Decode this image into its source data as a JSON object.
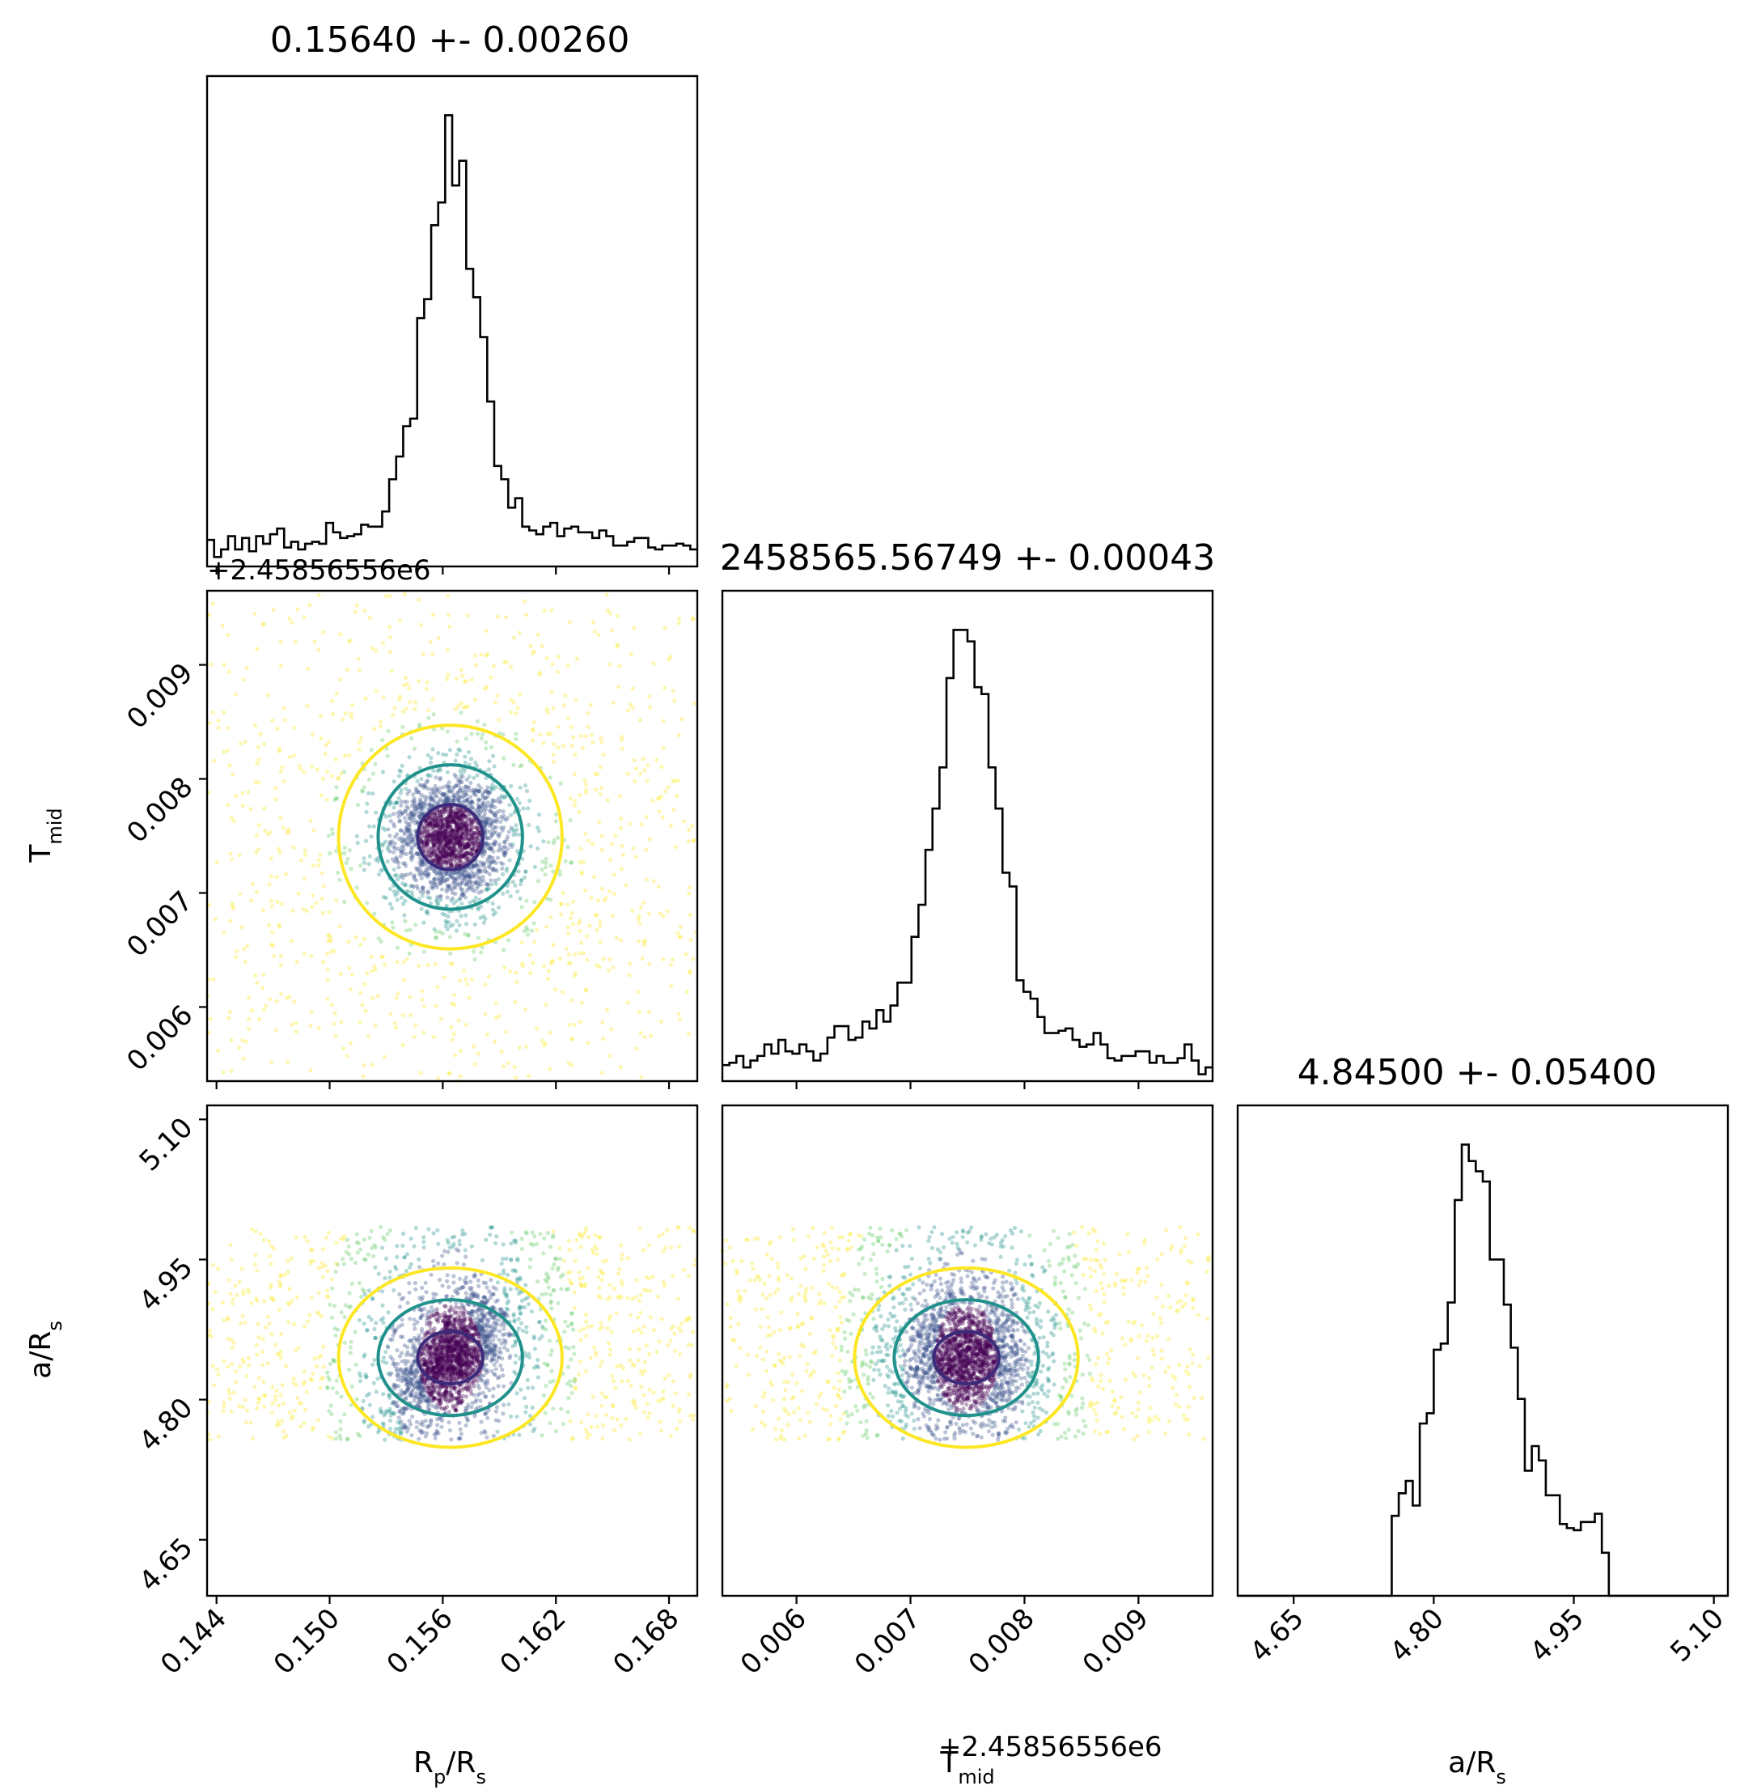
{
  "chart_data": {
    "type": "corner",
    "parameters": [
      {
        "id": "rprs",
        "axis_label": "R",
        "axis_label_sub": "p",
        "axis_label_tail": "/R",
        "axis_label_tail_sub": "s",
        "title": "0.15640 +- 0.00260",
        "range": [
          0.1435,
          0.1695
        ],
        "ticks": [
          "0.144",
          "0.150",
          "0.156",
          "0.162",
          "0.168"
        ],
        "tick_values": [
          0.144,
          0.15,
          0.156,
          0.162,
          0.168
        ],
        "offset": "",
        "mean": 0.1564,
        "std": 0.0026
      },
      {
        "id": "tmid",
        "axis_label": "T",
        "axis_label_sub": "mid",
        "axis_label_tail": "",
        "axis_label_tail_sub": "",
        "title": "2458565.56749 +- 0.00043",
        "range": [
          0.00535,
          0.00965
        ],
        "ticks": [
          "0.006",
          "0.007",
          "0.008",
          "0.009"
        ],
        "tick_values": [
          0.006,
          0.007,
          0.008,
          0.009
        ],
        "offset": "+2.45856556e6",
        "mean": 0.00749,
        "std": 0.00043
      },
      {
        "id": "ars",
        "axis_label": "a/R",
        "axis_label_sub": "s",
        "axis_label_tail": "",
        "axis_label_tail_sub": "",
        "title": "4.84500 +- 0.05400",
        "range": [
          4.59,
          5.115
        ],
        "ticks": [
          "4.65",
          "4.80",
          "4.95",
          "5.10"
        ],
        "tick_values": [
          4.65,
          4.8,
          4.95,
          5.1
        ],
        "offset": "",
        "mean": 4.845,
        "std": 0.054,
        "bounds": [
          4.757,
          4.985
        ]
      }
    ],
    "sample_colormap": [
      "#440154",
      "#3b528b",
      "#21918c",
      "#5ec962",
      "#fde725"
    ],
    "contour_colors": [
      "#3b2a7a",
      "#21918c",
      "#fde725"
    ],
    "line_color": "#000000"
  }
}
